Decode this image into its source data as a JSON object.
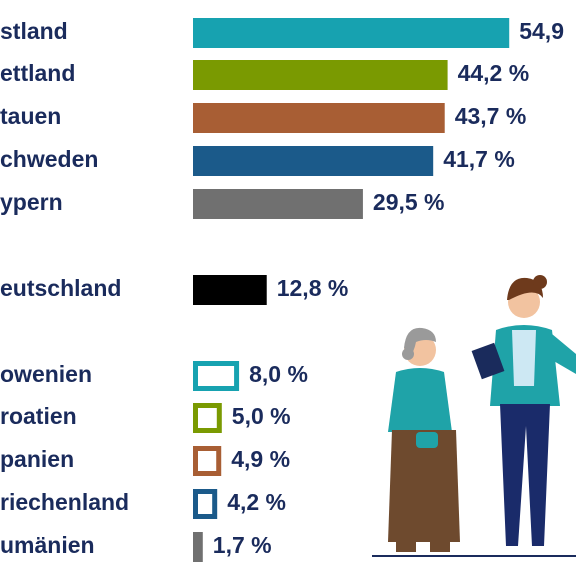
{
  "chart_data": {
    "type": "hbar",
    "categories": [
      "stland",
      "ettland",
      "tauen",
      "chweden",
      "ypern",
      "eutschland",
      "owenien",
      "roatien",
      "panien",
      "riechenland",
      "umänien"
    ],
    "values": [
      54.9,
      44.2,
      43.7,
      41.7,
      29.5,
      12.8,
      8.0,
      5.0,
      4.9,
      4.2,
      1.7
    ],
    "value_labels": [
      "54,9",
      "44,2 %",
      "43,7 %",
      "41,7 %",
      "29,5 %",
      "12,8 %",
      "8,0 %",
      "5,0 %",
      "4,9 %",
      "4,2 %",
      "1,7 %"
    ],
    "colors": [
      "#17a2b0",
      "#7a9a01",
      "#a85e34",
      "#1b5a8a",
      "#707070",
      "#000000",
      "#17a2b0",
      "#7a9a01",
      "#a85e34",
      "#1b5a8a",
      "#707070"
    ],
    "outlined": [
      false,
      false,
      false,
      false,
      false,
      false,
      true,
      true,
      true,
      true,
      true
    ]
  }
}
